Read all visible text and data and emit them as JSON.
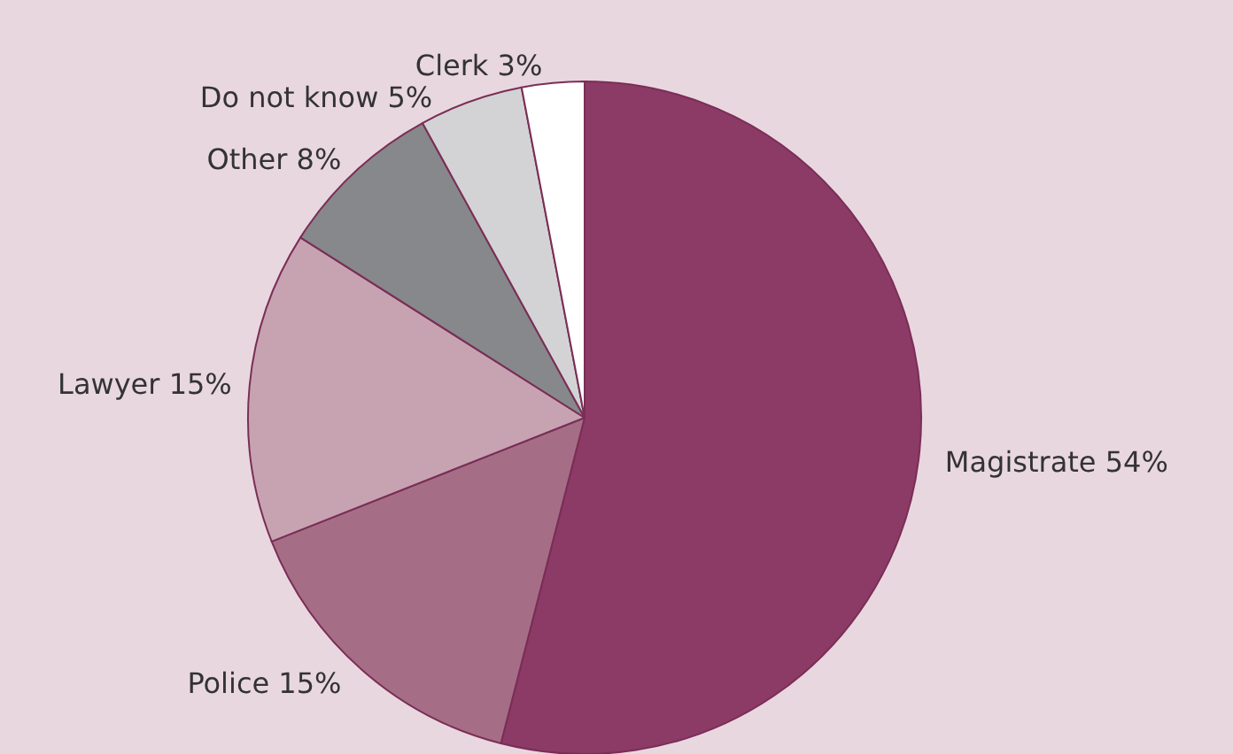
{
  "chart_data": {
    "type": "pie",
    "categories": [
      "Magistrate",
      "Police",
      "Lawyer",
      "Other",
      "Do not know",
      "Clerk"
    ],
    "values": [
      54,
      15,
      15,
      8,
      5,
      3
    ],
    "value_labels": [
      "54%",
      "15%",
      "15%",
      "8%",
      "5%",
      "3%"
    ],
    "colors": [
      "#8c3a66",
      "#a66e86",
      "#c7a3b2",
      "#87888b",
      "#d3d3d5",
      "#ffffff"
    ],
    "legend": false
  }
}
